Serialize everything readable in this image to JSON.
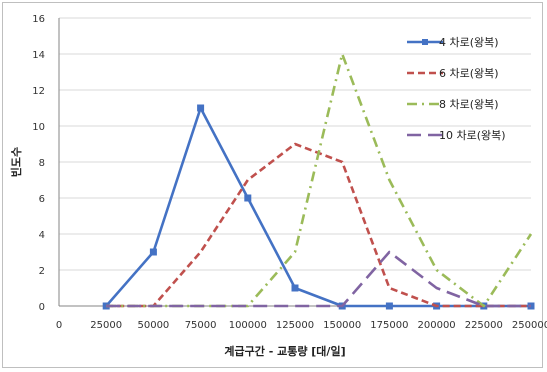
{
  "chart_data": {
    "type": "line",
    "title": "",
    "xlabel": "계급구간 - 교통량 [대/일]",
    "ylabel": "빈도수",
    "xlim": [
      0,
      250000
    ],
    "ylim": [
      0,
      16
    ],
    "xticks": [
      0,
      25000,
      50000,
      75000,
      100000,
      125000,
      150000,
      175000,
      200000,
      225000,
      250000
    ],
    "yticks": [
      0,
      2,
      4,
      6,
      8,
      10,
      12,
      14,
      16
    ],
    "grid": true,
    "legend_position": "right",
    "x": [
      25000,
      50000,
      75000,
      100000,
      125000,
      150000,
      175000,
      200000,
      225000,
      250000
    ],
    "series": [
      {
        "name": "4 차로(왕복)",
        "values": [
          0,
          3,
          11,
          6,
          1,
          0,
          0,
          0,
          0,
          0
        ],
        "color": "#4472C4",
        "style": "solid-marker"
      },
      {
        "name": "6 차로(왕복)",
        "values": [
          0,
          0,
          3,
          7,
          9,
          8,
          1,
          0,
          0,
          0
        ],
        "color": "#C0504D",
        "style": "dash"
      },
      {
        "name": "8 차로(왕복)",
        "values": [
          0,
          0,
          0,
          0,
          3,
          14,
          7,
          2,
          0,
          4
        ],
        "color": "#9BBB59",
        "style": "dash-dot"
      },
      {
        "name": "10 차로(왕복)",
        "values": [
          0,
          0,
          0,
          0,
          0,
          0,
          3,
          1,
          0,
          0
        ],
        "color": "#8064A2",
        "style": "long-dash"
      }
    ]
  }
}
